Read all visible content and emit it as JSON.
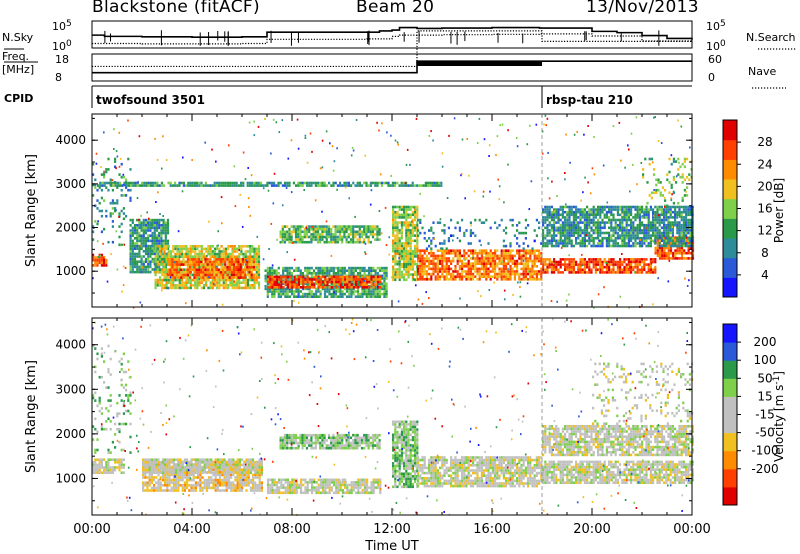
{
  "header": {
    "station": "Blackstone (fitACF)",
    "beam": "Beam 20",
    "date": "13/Nov/2013"
  },
  "chart_data": [
    {
      "type": "line",
      "panel": "noise",
      "left_label": "N.Sky",
      "right_label": "N.Search",
      "left_ticks": [
        "10^5",
        "10^0"
      ],
      "right_ticks": [
        "10^5",
        "10^0"
      ],
      "series": [
        {
          "name": "N.Sky",
          "style": "solid",
          "x": [
            0,
            0.5,
            2,
            4,
            6,
            6.9,
            7,
            9,
            10,
            11,
            11.5,
            12,
            12.3,
            13,
            14,
            16,
            17.9,
            18,
            20,
            21,
            22,
            23,
            24
          ],
          "y": [
            2.6,
            2.3,
            2.2,
            2.1,
            2.2,
            2.2,
            3.3,
            3.3,
            3.3,
            3.3,
            3.6,
            3.8,
            4.4,
            4.2,
            4.3,
            4.4,
            4.3,
            4.3,
            3.5,
            3.2,
            2.5,
            1.8,
            1.5
          ]
        },
        {
          "name": "N.Search",
          "style": "dotted",
          "x": [
            0,
            2,
            4,
            6,
            6.9,
            7,
            9,
            11,
            12,
            12.3,
            14,
            16,
            17.9,
            18,
            20,
            22,
            24
          ],
          "y": [
            0.6,
            0.5,
            0.5,
            0.6,
            0.6,
            1.6,
            1.6,
            1.7,
            2.3,
            2.6,
            2.7,
            2.8,
            2.9,
            2.9,
            2.4,
            1.2,
            0.8
          ]
        }
      ]
    },
    {
      "type": "line",
      "panel": "frequency",
      "left_label": "Freq. [MHz]",
      "right_label": "Nave",
      "left_ticks": [
        "18",
        "8"
      ],
      "right_ticks": [
        "60",
        "0"
      ],
      "series": [
        {
          "name": "Freq.",
          "style": "solid",
          "x": [
            0,
            12.99,
            13,
            24
          ],
          "y": [
            10,
            10,
            15.5,
            15.5
          ]
        },
        {
          "name": "Nave",
          "style": "dotted",
          "x": [
            0,
            12.99,
            13,
            17.99,
            18,
            24
          ],
          "y": [
            13,
            13,
            30,
            30,
            25,
            25
          ]
        }
      ]
    },
    {
      "type": "table",
      "panel": "cpid",
      "label": "CPID",
      "entries": [
        {
          "start": 0,
          "text": "twofsound 3501"
        },
        {
          "start": 18,
          "text": "rbsp-tau 210"
        }
      ]
    },
    {
      "type": "heatmap",
      "panel": "power",
      "ylabel": "Slant Range [km]",
      "yticks": [
        "1000",
        "2000",
        "3000",
        "4000"
      ],
      "ylim": [
        180,
        4600
      ],
      "xlim": [
        0,
        24
      ],
      "colorbar": {
        "label": "Power [dB]",
        "range": [
          0,
          32
        ],
        "ticks": [
          "4",
          "8",
          "12",
          "16",
          "20",
          "24",
          "28"
        ],
        "colors": [
          "#1515ff",
          "#2a5ad8",
          "#2e8c9a",
          "#2a9a4a",
          "#7ed04a",
          "#f0c020",
          "#ff8c00",
          "#ff4000",
          "#e00000"
        ]
      },
      "bands": [
        {
          "t": [
            0.0,
            0.6
          ],
          "r": [
            1150,
            1400
          ],
          "v": 27
        },
        {
          "t": [
            0.0,
            1.5
          ],
          "r": [
            1600,
            3600
          ],
          "v": 10,
          "sparse": true
        },
        {
          "t": [
            1.5,
            3.0
          ],
          "r": [
            1000,
            2200
          ],
          "v": 11
        },
        {
          "t": [
            2.5,
            6.7
          ],
          "r": [
            600,
            1600
          ],
          "v": 18
        },
        {
          "t": [
            3.0,
            6.5
          ],
          "r": [
            850,
            1300
          ],
          "v": 25
        },
        {
          "t": [
            6.9,
            11.8
          ],
          "r": [
            400,
            1100
          ],
          "v": 12
        },
        {
          "t": [
            7.0,
            11.5
          ],
          "r": [
            650,
            900
          ],
          "v": 27
        },
        {
          "t": [
            7.5,
            11.5
          ],
          "r": [
            1650,
            2050
          ],
          "v": 14
        },
        {
          "t": [
            0.2,
            14.0
          ],
          "r": [
            2950,
            3050
          ],
          "v": 11
        },
        {
          "t": [
            12.0,
            13.0
          ],
          "r": [
            800,
            2500
          ],
          "v": 17
        },
        {
          "t": [
            13.0,
            18.0
          ],
          "r": [
            800,
            1500
          ],
          "v": 24
        },
        {
          "t": [
            13.0,
            18.0
          ],
          "r": [
            1500,
            2200
          ],
          "v": 8,
          "sparse": true
        },
        {
          "t": [
            18.0,
            22.5
          ],
          "r": [
            950,
            1300
          ],
          "v": 27
        },
        {
          "t": [
            22.5,
            24.0
          ],
          "r": [
            1300,
            1800
          ],
          "v": 26
        },
        {
          "t": [
            18.0,
            24.0
          ],
          "r": [
            1600,
            2500
          ],
          "v": 10
        },
        {
          "t": [
            22.0,
            24.0
          ],
          "r": [
            2500,
            3600
          ],
          "v": 15,
          "sparse": true
        }
      ]
    },
    {
      "type": "heatmap",
      "panel": "velocity",
      "ylabel": "Slant Range [km]",
      "xlabel": "Time UT",
      "xticks": [
        "00:00",
        "04:00",
        "08:00",
        "12:00",
        "16:00",
        "20:00",
        "00:00"
      ],
      "yticks": [
        "1000",
        "2000",
        "3000",
        "4000"
      ],
      "ylim": [
        180,
        4600
      ],
      "xlim": [
        0,
        24
      ],
      "colorbar": {
        "label": "Velocity [m s^-1]",
        "range": [
          -250,
          250
        ],
        "ticks": [
          "200",
          "100",
          "50",
          "15",
          "-15",
          "-50",
          "-100",
          "-200"
        ],
        "colors": [
          "#e00000",
          "#ff4000",
          "#ff8c00",
          "#f0c020",
          "#c0c0c0",
          "#c0c0c0",
          "#7ed04a",
          "#2a9a4a",
          "#2a5ad8",
          "#1515ff"
        ]
      },
      "bands": [
        {
          "t": [
            0.0,
            1.3
          ],
          "r": [
            1100,
            1450
          ],
          "v": 0
        },
        {
          "t": [
            0.0,
            1.5
          ],
          "r": [
            1600,
            4000
          ],
          "v": 60,
          "sparse": true
        },
        {
          "t": [
            2.0,
            6.8
          ],
          "r": [
            700,
            1400
          ],
          "v": -40
        },
        {
          "t": [
            2.0,
            6.8
          ],
          "r": [
            1100,
            1450
          ],
          "v": 0
        },
        {
          "t": [
            7.0,
            11.5
          ],
          "r": [
            650,
            1000
          ],
          "v": 0
        },
        {
          "t": [
            7.5,
            11.5
          ],
          "r": [
            1650,
            2000
          ],
          "v": 60
        },
        {
          "t": [
            12.0,
            13.0
          ],
          "r": [
            800,
            2300
          ],
          "v": 70
        },
        {
          "t": [
            13.0,
            18.0
          ],
          "r": [
            800,
            1500
          ],
          "v": 0
        },
        {
          "t": [
            18.0,
            24.0
          ],
          "r": [
            900,
            1400
          ],
          "v": 0
        },
        {
          "t": [
            18.0,
            24.0
          ],
          "r": [
            1500,
            2200
          ],
          "v": 5
        },
        {
          "t": [
            20.0,
            24.0
          ],
          "r": [
            2200,
            3600
          ],
          "v": 0,
          "sparse": true
        }
      ]
    }
  ]
}
